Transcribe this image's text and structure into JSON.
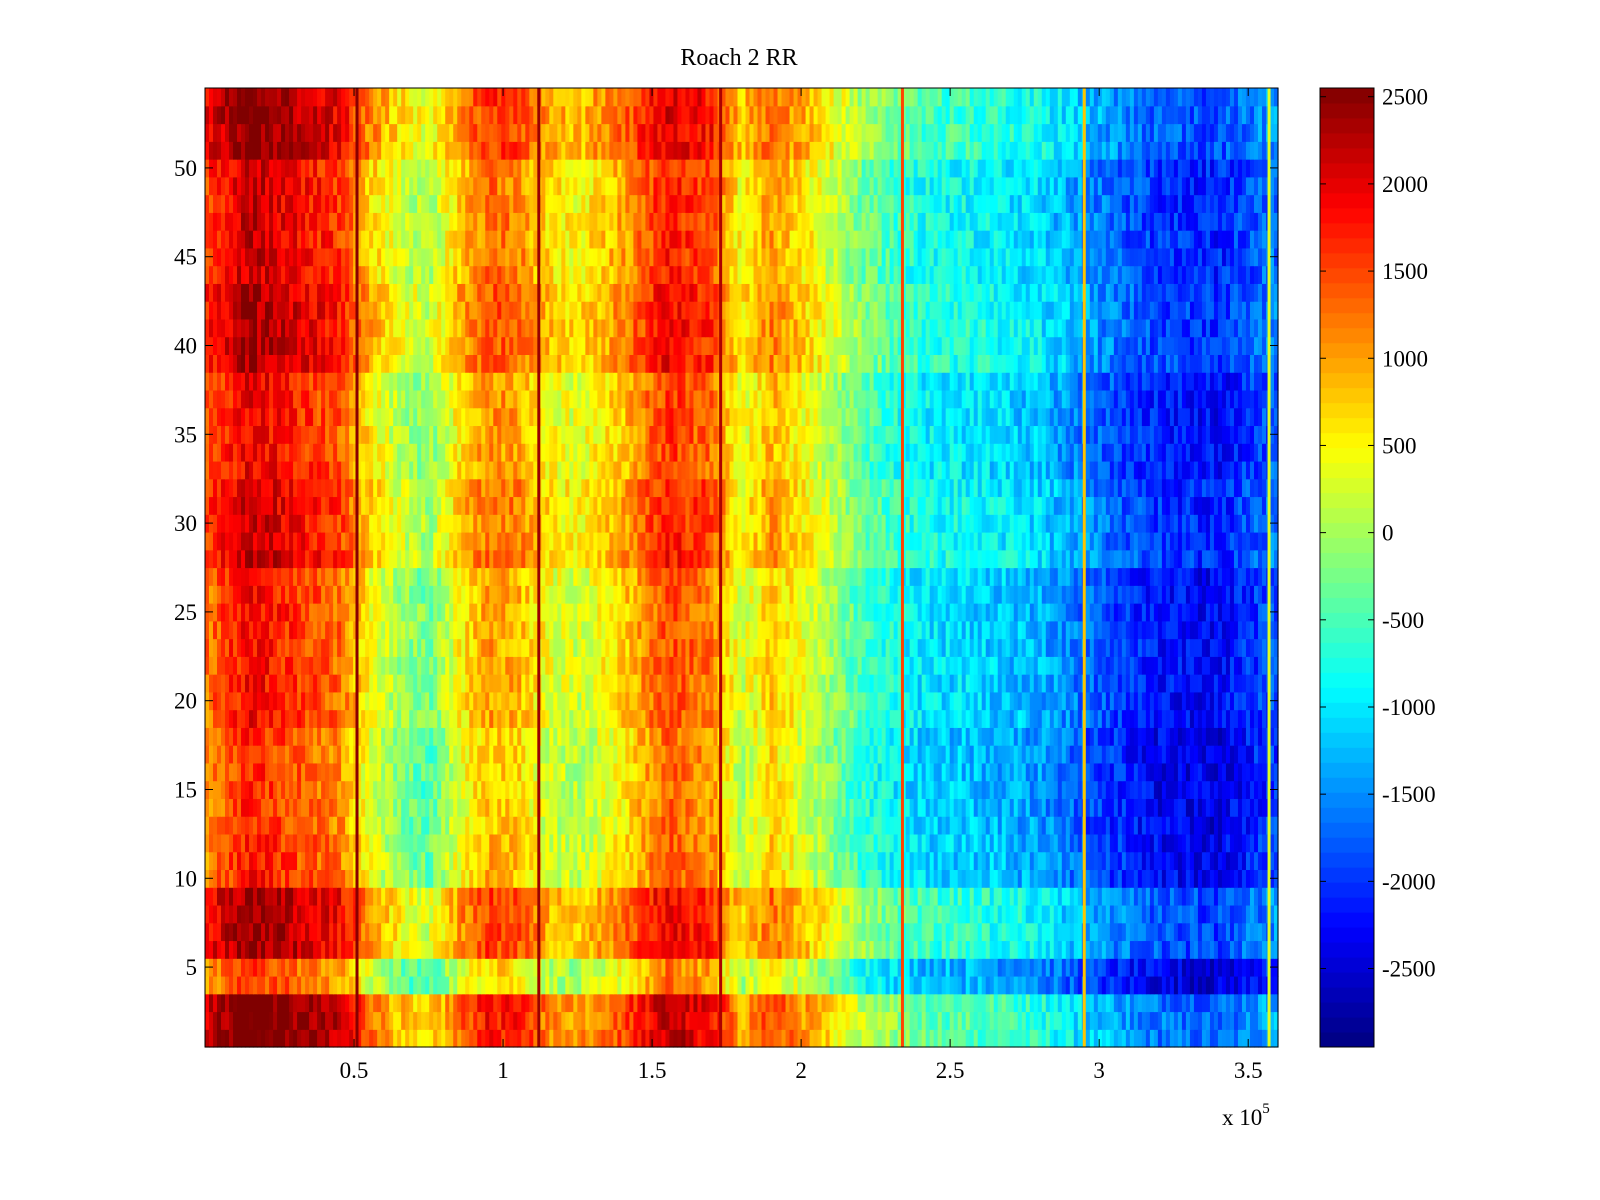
{
  "chart_data": {
    "type": "heatmap",
    "title": "Roach 2 RR",
    "xlabel": "",
    "ylabel": "",
    "x_multiplier_label": {
      "base": "x 10",
      "exponent": "5"
    },
    "x_range": [
      0,
      360000
    ],
    "y_range": [
      0.5,
      54.5
    ],
    "rows": 54,
    "x_ticks": [
      {
        "value": 0.5,
        "label": "0.5"
      },
      {
        "value": 1.0,
        "label": "1"
      },
      {
        "value": 1.5,
        "label": "1.5"
      },
      {
        "value": 2.0,
        "label": "2"
      },
      {
        "value": 2.5,
        "label": "2.5"
      },
      {
        "value": 3.0,
        "label": "3"
      },
      {
        "value": 3.5,
        "label": "3.5"
      }
    ],
    "y_ticks": [
      {
        "value": 5,
        "label": "5"
      },
      {
        "value": 10,
        "label": "10"
      },
      {
        "value": 15,
        "label": "15"
      },
      {
        "value": 20,
        "label": "20"
      },
      {
        "value": 25,
        "label": "25"
      },
      {
        "value": 30,
        "label": "30"
      },
      {
        "value": 35,
        "label": "35"
      },
      {
        "value": 40,
        "label": "40"
      },
      {
        "value": 45,
        "label": "45"
      },
      {
        "value": 50,
        "label": "50"
      }
    ],
    "colorbar": {
      "colormap": "jet",
      "range": [
        -2950,
        2550
      ],
      "ticks": [
        {
          "value": 2500,
          "label": "2500"
        },
        {
          "value": 2000,
          "label": "2000"
        },
        {
          "value": 1500,
          "label": "1500"
        },
        {
          "value": 1000,
          "label": "1000"
        },
        {
          "value": 500,
          "label": "500"
        },
        {
          "value": 0,
          "label": "0"
        },
        {
          "value": -500,
          "label": "-500"
        },
        {
          "value": -1000,
          "label": "-1000"
        },
        {
          "value": -1500,
          "label": "-1500"
        },
        {
          "value": -2000,
          "label": "-2000"
        },
        {
          "value": -2500,
          "label": "-2500"
        }
      ]
    },
    "column_profile": [
      {
        "x": 0,
        "value": 1200
      },
      {
        "x": 15000,
        "value": 1900
      },
      {
        "x": 30000,
        "value": 1600
      },
      {
        "x": 45000,
        "value": 1300
      },
      {
        "x": 55000,
        "value": 500
      },
      {
        "x": 65000,
        "value": 0
      },
      {
        "x": 75000,
        "value": -300
      },
      {
        "x": 85000,
        "value": 500
      },
      {
        "x": 95000,
        "value": 1000
      },
      {
        "x": 105000,
        "value": 900
      },
      {
        "x": 115000,
        "value": 400
      },
      {
        "x": 125000,
        "value": 200
      },
      {
        "x": 140000,
        "value": 700
      },
      {
        "x": 155000,
        "value": 1500
      },
      {
        "x": 170000,
        "value": 1200
      },
      {
        "x": 180000,
        "value": 200
      },
      {
        "x": 190000,
        "value": 800
      },
      {
        "x": 205000,
        "value": 200
      },
      {
        "x": 220000,
        "value": -500
      },
      {
        "x": 240000,
        "value": -1000
      },
      {
        "x": 260000,
        "value": -1100
      },
      {
        "x": 280000,
        "value": -1300
      },
      {
        "x": 300000,
        "value": -1800
      },
      {
        "x": 320000,
        "value": -2200
      },
      {
        "x": 340000,
        "value": -2300
      },
      {
        "x": 360000,
        "value": -1800
      }
    ],
    "vertical_stripes": [
      {
        "x": 51000,
        "value": 2500
      },
      {
        "x": 112000,
        "value": 2400
      },
      {
        "x": 173000,
        "value": 2300
      },
      {
        "x": 234000,
        "value": 1500
      },
      {
        "x": 295000,
        "value": 800
      },
      {
        "x": 357000,
        "value": 300
      }
    ],
    "row_bands": [
      {
        "rows": [
          1,
          3
        ],
        "offset": 900
      },
      {
        "rows": [
          4,
          5
        ],
        "offset": -300
      },
      {
        "rows": [
          6,
          9
        ],
        "offset": 600
      },
      {
        "rows": [
          10,
          12
        ],
        "offset": -100
      },
      {
        "rows": [
          13,
          18
        ],
        "offset": -200
      },
      {
        "rows": [
          19,
          27
        ],
        "offset": 0
      },
      {
        "rows": [
          28,
          28
        ],
        "offset": 400
      },
      {
        "rows": [
          29,
          32
        ],
        "offset": 300
      },
      {
        "rows": [
          33,
          38
        ],
        "offset": 100
      },
      {
        "rows": [
          39,
          43
        ],
        "offset": 500
      },
      {
        "rows": [
          44,
          50
        ],
        "offset": 300
      },
      {
        "rows": [
          51,
          54
        ],
        "offset": 700
      }
    ]
  }
}
